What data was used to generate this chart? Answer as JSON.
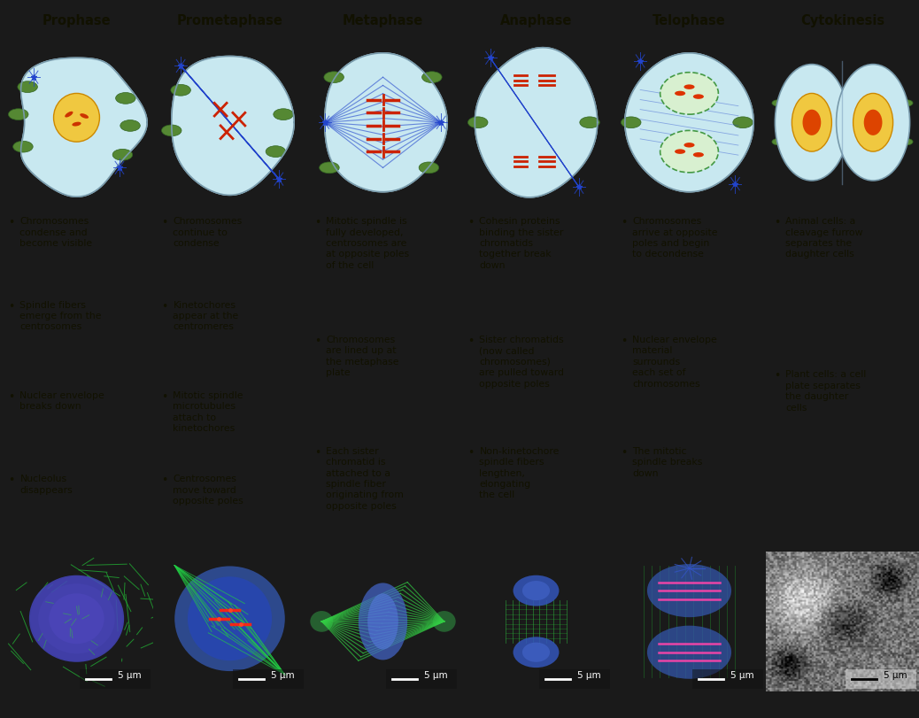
{
  "headers": [
    "Prophase",
    "Prometaphase",
    "Metaphase",
    "Anaphase",
    "Telophase",
    "Cytokinesis"
  ],
  "header_bg_green": "#bfcf9a",
  "header_bg_blue": "#aacce0",
  "text_bg_color": "#f0ead8",
  "diagram_bg_color": "#c8c8a8",
  "border_color": "#888888",
  "text_color": "#111100",
  "cell_fill": "#c8e8f0",
  "cell_edge": "#7799aa",
  "spindle_color": "#2244cc",
  "chrom_color": "#cc2200",
  "org_color": "#447733",
  "nuc_fill": "#f0c840",
  "nuc_edge": "#cc8800",
  "bullet_texts": [
    [
      "Chromosomes\ncondense and\nbecome visible",
      "Spindle fibers\nemerge from the\ncentrosomes",
      "Nuclear envelope\nbreaks down",
      "Nucleolus\ndisappears"
    ],
    [
      "Chromosomes\ncontinue to\ncondense",
      "Kinetochores\nappear at the\ncentromeres",
      "Mitotic spindle\nmicrotubules\nattach to\nkinetochores",
      "Centrosomes\nmove toward\nopposite poles"
    ],
    [
      "Mitotic spindle is\nfully developed,\ncentrosomes are\nat opposite poles\nof the cell",
      "Chromosomes\nare lined up at\nthe metaphase\nplate",
      "Each sister\nchromatid is\nattached to a\nspindle fiber\noriginating from\nopposite poles"
    ],
    [
      "Cohesin proteins\nbinding the sister\nchromatids\ntogether break\ndown",
      "Sister chromatids\n(now called\nchromosomes)\nare pulled toward\nopposite poles",
      "Non-kinetochore\nspindle fibers\nlengthen,\nelongating\nthe cell"
    ],
    [
      "Chromosomes\narrive at opposite\npoles and begin\nto decondense",
      "Nuclear envelope\nmaterial\nsurrounds\neach set of\nchromosomes",
      "The mitotic\nspindle breaks\ndown"
    ],
    [
      "Animal cells: a\ncleavage furrow\nseparates the\ndaughter cells",
      "Plant cells: a cell\nplate separates\nthe daughter\ncells"
    ]
  ],
  "scale_bar_text": "5 μm",
  "n_cols": 6,
  "fig_width": 10.38,
  "fig_height": 8.11,
  "header_fontsize": 10.5,
  "body_fontsize": 7.8
}
